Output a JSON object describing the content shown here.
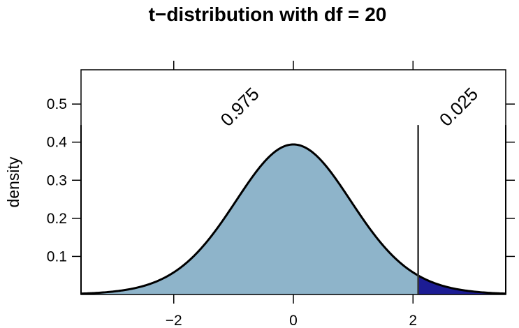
{
  "chart_data": {
    "type": "area",
    "title": "t−distribution with df = 20",
    "xlabel": "",
    "ylabel": "density",
    "xlim": [
      -3.55,
      3.55
    ],
    "ylim": [
      0,
      0.59
    ],
    "df": 20,
    "critical_value": 2.086,
    "x_ticks": [
      -2,
      0,
      2
    ],
    "x_tick_labels": [
      "−2",
      "0",
      "2"
    ],
    "y_ticks": [
      0.1,
      0.2,
      0.3,
      0.4,
      0.5
    ],
    "y_tick_labels": [
      "0.1",
      "0.2",
      "0.3",
      "0.4",
      "0.5"
    ],
    "regions": [
      {
        "x_from": -3.55,
        "x_to": 2.086,
        "probability": "0.975",
        "color": "#8eb4ca"
      },
      {
        "x_from": 2.086,
        "x_to": 3.55,
        "probability": "0.025",
        "color": "#1c1c94"
      }
    ],
    "annotations": [
      {
        "text": "0.975",
        "x": -0.88,
        "y": 0.49
      },
      {
        "text": "0.025",
        "x": 2.78,
        "y": 0.49
      }
    ],
    "grid": false,
    "curve_color": "#000000",
    "critical_line_color": "#333333"
  }
}
